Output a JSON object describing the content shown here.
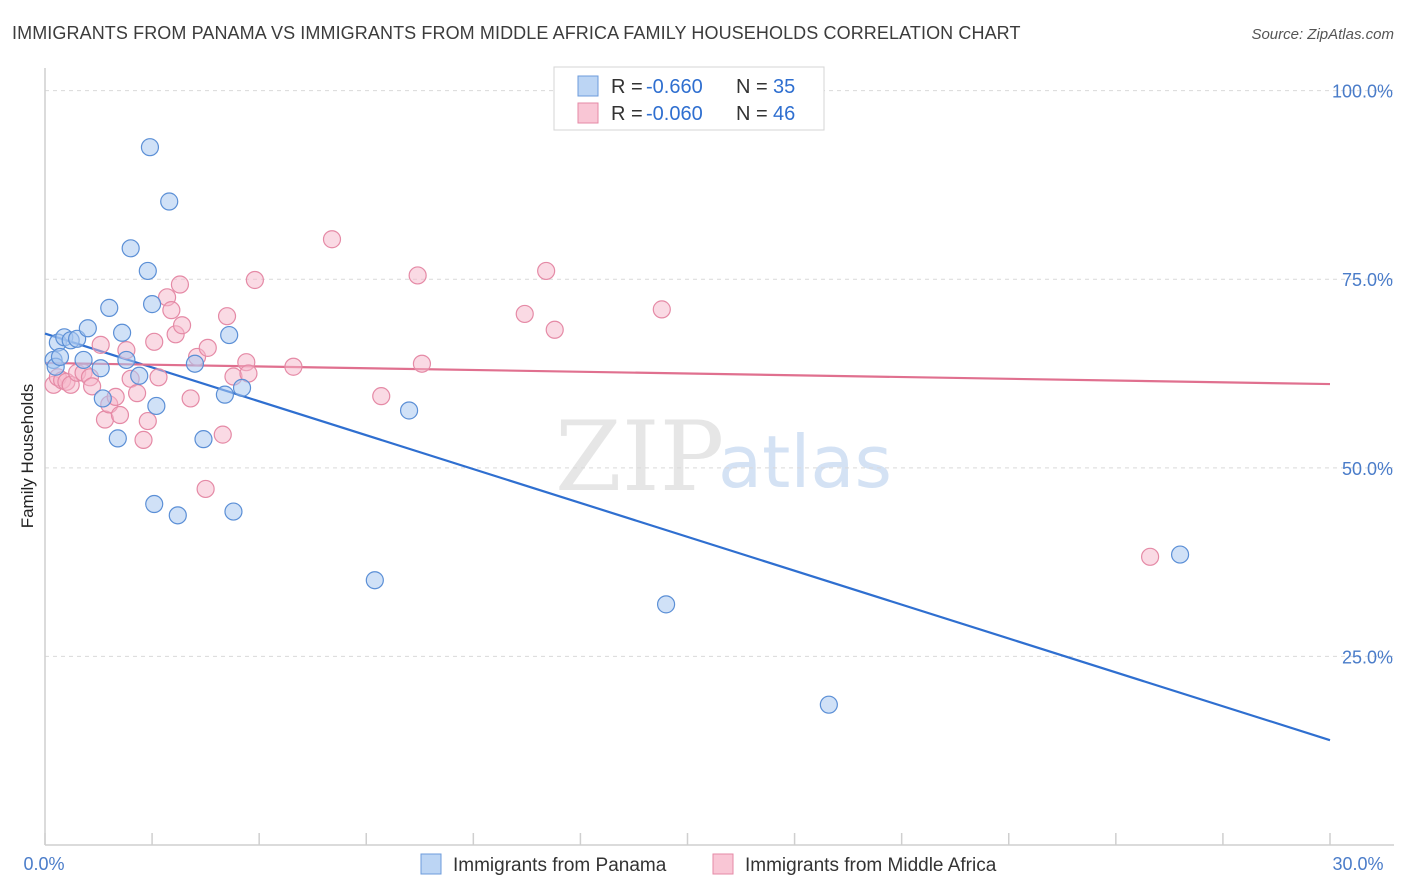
{
  "chart_data": {
    "type": "scatter",
    "title": "IMMIGRANTS FROM PANAMA VS IMMIGRANTS FROM MIDDLE AFRICA FAMILY HOUSEHOLDS CORRELATION CHART",
    "source": "Source: ZipAtlas.com",
    "xlabel": "",
    "ylabel": "Family Households",
    "xlim": [
      0,
      30
    ],
    "ylim": [
      0,
      103
    ],
    "x_tick_labels": {
      "min": "0.0%",
      "max": "30.0%"
    },
    "y_ticks": [
      {
        "value": 100,
        "label": "100.0%"
      },
      {
        "value": 75,
        "label": "75.0%"
      },
      {
        "value": 50,
        "label": "50.0%"
      },
      {
        "value": 25,
        "label": "25.0%"
      }
    ],
    "watermark": {
      "zip": "ZIP",
      "atlas": "atlas"
    },
    "legend": {
      "r_label": "R =",
      "n_label": "N =",
      "entries": [
        {
          "name": "Immigrants from Panama",
          "r": "-0.660",
          "n": "35",
          "color": "#a9c8f0"
        },
        {
          "name": "Immigrants from Middle Africa",
          "r": "-0.060",
          "n": "46",
          "color": "#f6b6c9"
        }
      ]
    },
    "series": [
      {
        "name": "Immigrants from Panama",
        "color": "#5b8fd6",
        "trend": {
          "x": [
            0,
            30
          ],
          "y": [
            67.8,
            13.9
          ],
          "color": "#2f6fd0"
        },
        "points": [
          [
            0.2,
            64.3
          ],
          [
            0.25,
            63.4
          ],
          [
            0.3,
            66.6
          ],
          [
            0.35,
            64.7
          ],
          [
            0.45,
            67.3
          ],
          [
            0.6,
            66.9
          ],
          [
            0.75,
            67.1
          ],
          [
            0.9,
            64.3
          ],
          [
            1.0,
            68.5
          ],
          [
            1.3,
            63.2
          ],
          [
            1.35,
            59.2
          ],
          [
            1.5,
            71.2
          ],
          [
            1.7,
            53.9
          ],
          [
            1.8,
            67.9
          ],
          [
            1.9,
            64.3
          ],
          [
            2.0,
            79.1
          ],
          [
            2.2,
            62.2
          ],
          [
            2.4,
            76.1
          ],
          [
            2.45,
            92.5
          ],
          [
            2.5,
            71.7
          ],
          [
            2.55,
            45.2
          ],
          [
            2.6,
            58.2
          ],
          [
            2.9,
            85.3
          ],
          [
            3.1,
            43.7
          ],
          [
            3.5,
            63.8
          ],
          [
            3.7,
            53.8
          ],
          [
            4.2,
            59.7
          ],
          [
            4.3,
            67.6
          ],
          [
            4.4,
            44.2
          ],
          [
            4.6,
            60.6
          ],
          [
            7.7,
            35.1
          ],
          [
            8.5,
            57.6
          ],
          [
            14.5,
            31.9
          ],
          [
            18.3,
            18.6
          ],
          [
            26.5,
            38.5
          ]
        ]
      },
      {
        "name": "Immigrants from Middle Africa",
        "color": "#e58aa6",
        "trend": {
          "x": [
            0,
            30
          ],
          "y": [
            63.9,
            61.1
          ],
          "color": "#e0708f"
        },
        "points": [
          [
            0.2,
            61.0
          ],
          [
            0.3,
            62.0
          ],
          [
            0.4,
            61.6
          ],
          [
            0.5,
            61.4
          ],
          [
            0.6,
            61.0
          ],
          [
            0.75,
            62.6
          ],
          [
            0.9,
            62.6
          ],
          [
            1.05,
            62.0
          ],
          [
            1.1,
            60.8
          ],
          [
            1.3,
            66.3
          ],
          [
            1.4,
            56.4
          ],
          [
            1.5,
            58.4
          ],
          [
            1.65,
            59.4
          ],
          [
            1.75,
            57.0
          ],
          [
            1.9,
            65.6
          ],
          [
            2.0,
            61.8
          ],
          [
            2.15,
            59.9
          ],
          [
            2.3,
            53.7
          ],
          [
            2.4,
            56.2
          ],
          [
            2.55,
            66.7
          ],
          [
            2.65,
            62.0
          ],
          [
            2.85,
            72.6
          ],
          [
            2.95,
            70.9
          ],
          [
            3.05,
            67.7
          ],
          [
            3.15,
            74.3
          ],
          [
            3.2,
            68.9
          ],
          [
            3.4,
            59.2
          ],
          [
            3.55,
            64.7
          ],
          [
            3.75,
            47.2
          ],
          [
            3.8,
            65.9
          ],
          [
            4.15,
            54.4
          ],
          [
            4.25,
            70.1
          ],
          [
            4.4,
            62.1
          ],
          [
            4.7,
            64.0
          ],
          [
            4.75,
            62.5
          ],
          [
            4.9,
            74.9
          ],
          [
            5.8,
            63.4
          ],
          [
            6.7,
            80.3
          ],
          [
            7.85,
            59.5
          ],
          [
            8.7,
            75.5
          ],
          [
            8.8,
            63.8
          ],
          [
            11.2,
            70.4
          ],
          [
            11.7,
            76.1
          ],
          [
            11.9,
            68.3
          ],
          [
            14.4,
            71.0
          ],
          [
            25.8,
            38.2
          ]
        ]
      }
    ]
  }
}
